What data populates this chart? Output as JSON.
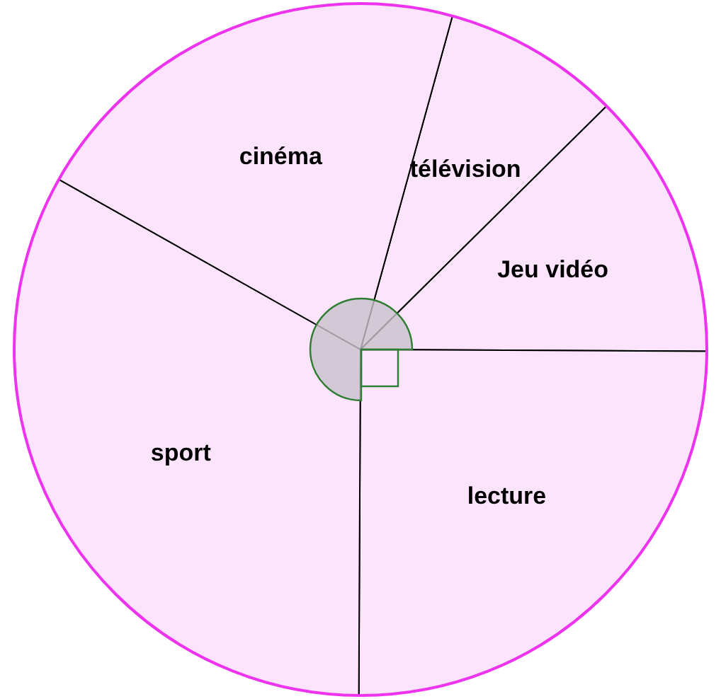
{
  "chart_data": {
    "type": "pie",
    "categories": [
      "télévision",
      "Jeu vidéo",
      "lecture",
      "sport",
      "cinéma"
    ],
    "values": [
      8.3,
      12.5,
      25,
      33.1,
      21.1
    ],
    "colors": [
      "#fce4fc",
      "#fce4fc",
      "#fce4fc",
      "#fce4fc",
      "#fce4fc"
    ],
    "legend": false
  }
}
